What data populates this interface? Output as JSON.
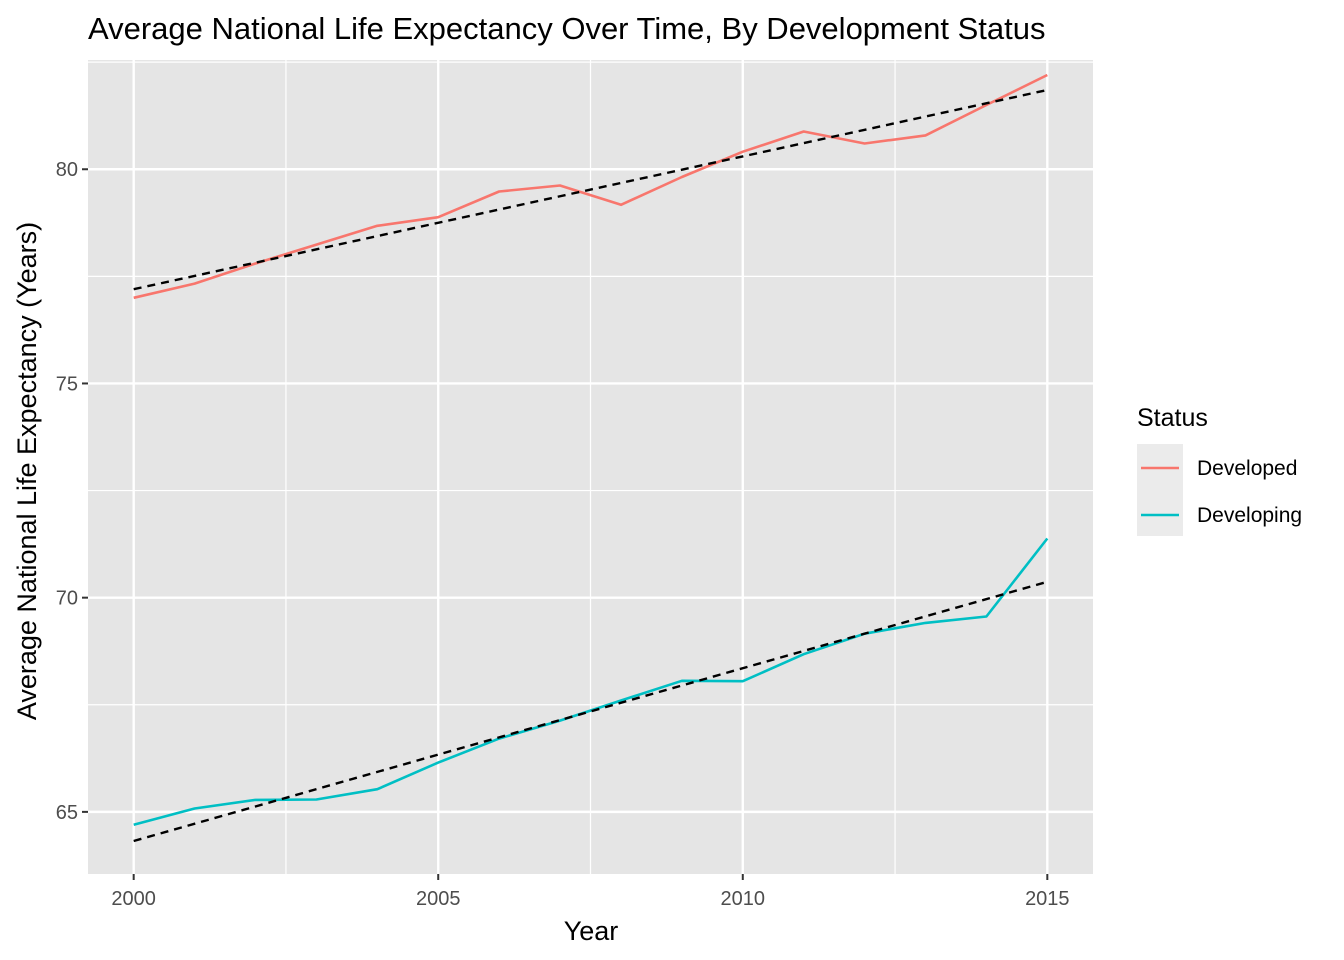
{
  "chart_data": {
    "type": "line",
    "title": "Average National Life Expectancy Over Time, By Development Status",
    "xlabel": "Year",
    "ylabel": "Average National Life Expectancy (Years)",
    "xlim": [
      1999.25,
      2015.75
    ],
    "ylim": [
      63.55,
      82.55
    ],
    "x_ticks": [
      2000,
      2005,
      2010,
      2015
    ],
    "y_ticks": [
      65,
      70,
      75,
      80
    ],
    "grid": true,
    "background": "#e5e5e5",
    "legend": {
      "title": "Status",
      "placement": "right",
      "entries": [
        {
          "label": "Developed",
          "color": "#f8766d"
        },
        {
          "label": "Developing",
          "color": "#00bfc4"
        }
      ]
    },
    "x": [
      2000,
      2001,
      2002,
      2003,
      2004,
      2005,
      2006,
      2007,
      2008,
      2009,
      2010,
      2011,
      2012,
      2013,
      2014,
      2015
    ],
    "series": [
      {
        "name": "Developed",
        "color": "#f8766d",
        "values": [
          77.0,
          77.33,
          77.8,
          78.24,
          78.68,
          78.88,
          79.48,
          79.62,
          79.17,
          79.82,
          80.41,
          80.88,
          80.6,
          80.79,
          81.5,
          82.2
        ],
        "trend": {
          "start": 77.2,
          "end": 81.85,
          "style": "dashed",
          "color": "#000000"
        }
      },
      {
        "name": "Developing",
        "color": "#00bfc4",
        "values": [
          64.7,
          65.08,
          65.28,
          65.29,
          65.53,
          66.15,
          66.71,
          67.13,
          67.6,
          68.06,
          68.05,
          68.68,
          69.16,
          69.41,
          69.56,
          71.38
        ],
        "trend": {
          "start": 64.32,
          "end": 70.37,
          "style": "dashed",
          "color": "#000000"
        }
      }
    ]
  }
}
